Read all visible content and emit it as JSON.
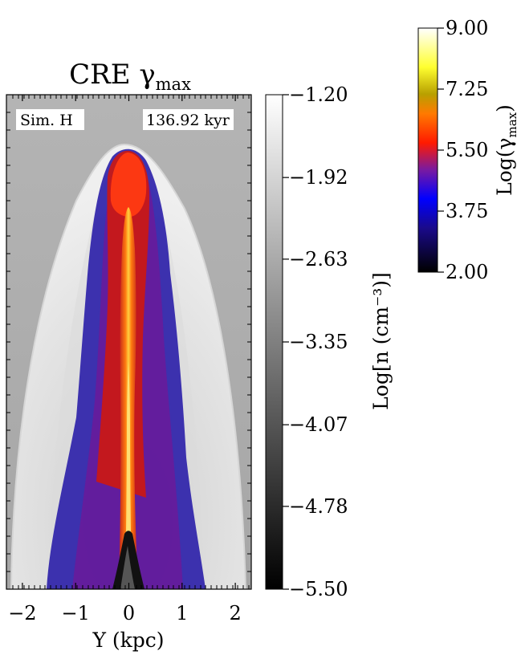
{
  "chart_data": {
    "type": "heatmap",
    "title": "CRE γ",
    "title_subscript": "max",
    "panel_labels": {
      "left": "Sim. H",
      "right": "136.92 kyr"
    },
    "xlabel": "Y (kpc)",
    "x_ticks": [
      "−2",
      "−1",
      "0",
      "1",
      "2"
    ],
    "x_tick_values": [
      -2,
      -1,
      0,
      1,
      2
    ],
    "xlim": [
      -2.3,
      2.3
    ],
    "grid": false,
    "density_colorbar": {
      "label": "Log[n (cm⁻³)]",
      "ticks": [
        "−1.20",
        "−1.92",
        "−2.63",
        "−3.35",
        "−4.07",
        "−4.78",
        "−5.50"
      ],
      "tick_values": [
        -1.2,
        -1.92,
        -2.63,
        -3.35,
        -4.07,
        -4.78,
        -5.5
      ],
      "range": [
        -5.5,
        -1.2
      ],
      "colors": [
        "#000000",
        "#ffffff"
      ]
    },
    "gamma_colorbar": {
      "label": "Log(γ",
      "label_subscript": "max",
      "label_close": ")",
      "ticks": [
        "9.00",
        "7.25",
        "5.50",
        "3.75",
        "2.00"
      ],
      "tick_values": [
        9.0,
        7.25,
        5.5,
        3.75,
        2.0
      ],
      "range": [
        2.0,
        9.0
      ],
      "colors": [
        "#000000",
        "#0000ff",
        "#7b1fa2",
        "#ff0000",
        "#ff8c00",
        "#ffff00",
        "#ffffff"
      ]
    }
  }
}
